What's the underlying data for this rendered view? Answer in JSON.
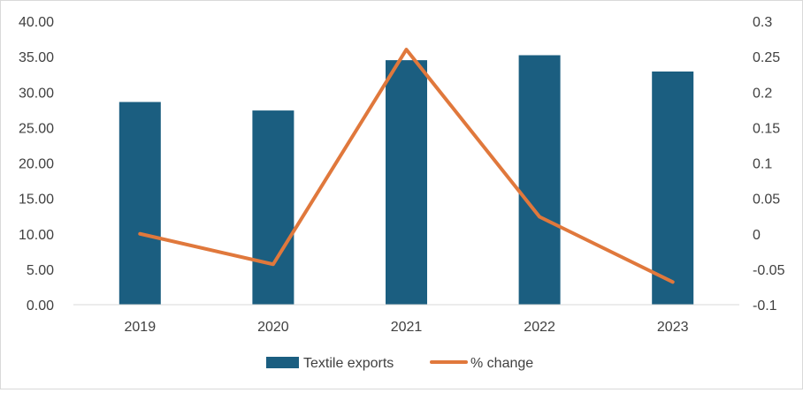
{
  "chart_data": {
    "type": "bar",
    "categories": [
      "2019",
      "2020",
      "2021",
      "2022",
      "2023"
    ],
    "series": [
      {
        "name": "Textile exports",
        "type": "bar",
        "axis": "left",
        "values": [
          28.6,
          27.4,
          34.5,
          35.2,
          32.9
        ],
        "color": "#1b5e80"
      },
      {
        "name": "% change",
        "type": "line",
        "axis": "right",
        "values": [
          0,
          -0.043,
          0.26,
          0.024,
          -0.068
        ],
        "color": "#e0783c"
      }
    ],
    "y_left": {
      "ylim": [
        0,
        40
      ],
      "ticks": [
        "0.00",
        "5.00",
        "10.00",
        "15.00",
        "20.00",
        "25.00",
        "30.00",
        "35.00",
        "40.00"
      ]
    },
    "y_right": {
      "ylim": [
        -0.1,
        0.3
      ],
      "ticks": [
        "-0.1",
        "-0.05",
        "0",
        "0.05",
        "0.1",
        "0.15",
        "0.2",
        "0.25",
        "0.3"
      ]
    },
    "grid": false,
    "legend": "bottom",
    "colors": {
      "axis": "#d9d9d9",
      "text": "#404040"
    }
  }
}
